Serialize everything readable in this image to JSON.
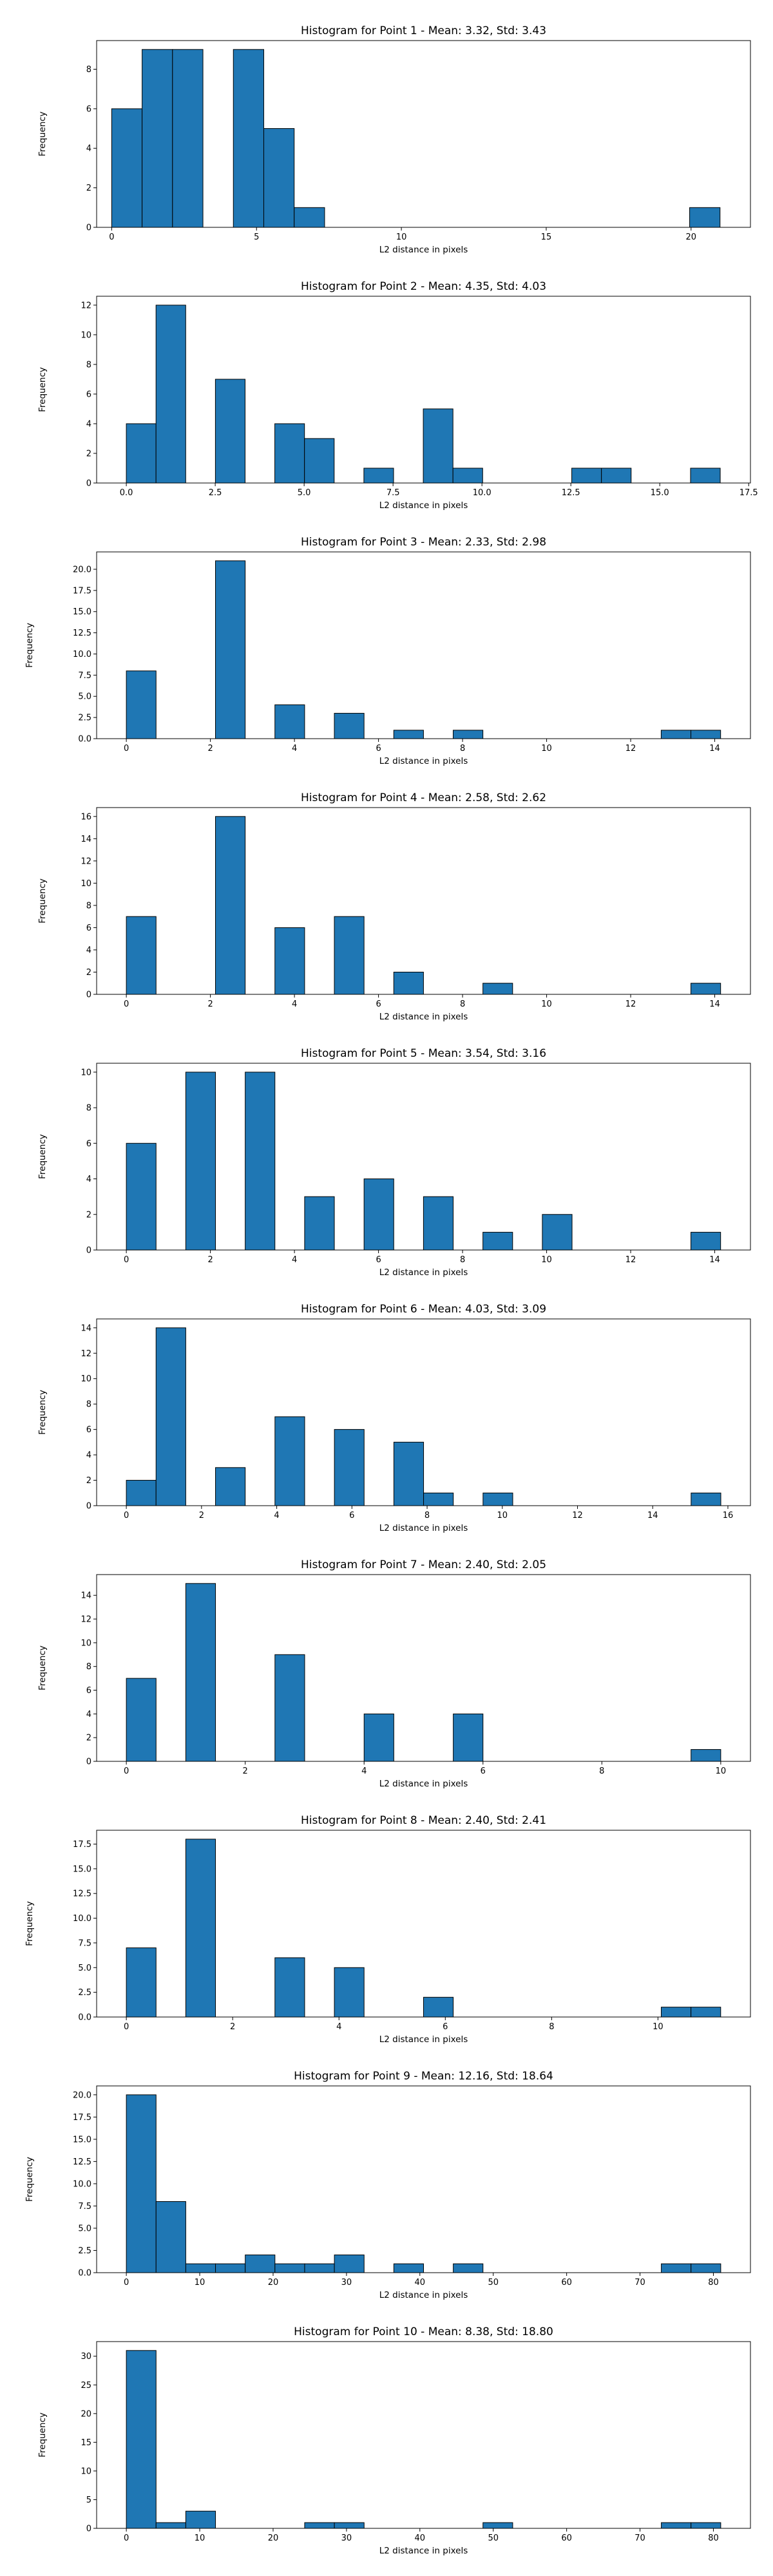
{
  "chart_data": [
    {
      "type": "bar",
      "title": "Histogram for Point 1 - Mean: 3.32, Std: 3.43",
      "xlabel": "L2 distance in pixels",
      "ylabel": "Frequency",
      "bins": {
        "start": 0.0,
        "width": 1.05
      },
      "values": [
        6,
        9,
        9,
        0,
        9,
        5,
        1,
        0,
        0,
        0,
        0,
        0,
        0,
        0,
        0,
        0,
        0,
        0,
        0,
        1
      ],
      "xlim": [
        -0.52,
        22.05
      ],
      "ylim": [
        0,
        9.45
      ],
      "xticks": [
        {
          "v": 0,
          "label": "0"
        },
        {
          "v": 5,
          "label": "5"
        },
        {
          "v": 10,
          "label": "10"
        },
        {
          "v": 15,
          "label": "15"
        },
        {
          "v": 20,
          "label": "20"
        }
      ],
      "yticks": [
        {
          "v": 0,
          "label": "0"
        },
        {
          "v": 2,
          "label": "2"
        },
        {
          "v": 4,
          "label": "4"
        },
        {
          "v": 6,
          "label": "6"
        },
        {
          "v": 8,
          "label": "8"
        }
      ]
    },
    {
      "type": "bar",
      "title": "Histogram for Point 2 - Mean: 4.35, Std: 4.03",
      "xlabel": "L2 distance in pixels",
      "ylabel": "Frequency",
      "bins": {
        "start": 0.0,
        "width": 0.835
      },
      "values": [
        4,
        12,
        0,
        7,
        0,
        4,
        3,
        0,
        1,
        0,
        5,
        1,
        0,
        0,
        0,
        1,
        1,
        0,
        0,
        1
      ],
      "xlim": [
        -0.835,
        17.55
      ],
      "ylim": [
        0,
        12.6
      ],
      "xticks": [
        {
          "v": 0,
          "label": "0.0"
        },
        {
          "v": 2.5,
          "label": "2.5"
        },
        {
          "v": 5,
          "label": "5.0"
        },
        {
          "v": 7.5,
          "label": "7.5"
        },
        {
          "v": 10,
          "label": "10.0"
        },
        {
          "v": 12.5,
          "label": "12.5"
        },
        {
          "v": 15,
          "label": "15.0"
        },
        {
          "v": 17.5,
          "label": "17.5"
        }
      ],
      "yticks": [
        {
          "v": 0,
          "label": "0"
        },
        {
          "v": 2,
          "label": "2"
        },
        {
          "v": 4,
          "label": "4"
        },
        {
          "v": 6,
          "label": "6"
        },
        {
          "v": 8,
          "label": "8"
        },
        {
          "v": 10,
          "label": "10"
        },
        {
          "v": 12,
          "label": "12"
        }
      ]
    },
    {
      "type": "bar",
      "title": "Histogram for Point 3 - Mean: 2.33, Std: 2.98",
      "xlabel": "L2 distance in pixels",
      "ylabel": "Frequency",
      "bins": {
        "start": 0.0,
        "width": 0.707
      },
      "values": [
        8,
        0,
        0,
        21,
        0,
        4,
        0,
        3,
        0,
        1,
        0,
        1,
        0,
        0,
        0,
        0,
        0,
        0,
        1,
        1
      ],
      "xlim": [
        -0.707,
        14.85
      ],
      "ylim": [
        0,
        22.05
      ],
      "xticks": [
        {
          "v": 0,
          "label": "0"
        },
        {
          "v": 2,
          "label": "2"
        },
        {
          "v": 4,
          "label": "4"
        },
        {
          "v": 6,
          "label": "6"
        },
        {
          "v": 8,
          "label": "8"
        },
        {
          "v": 10,
          "label": "10"
        },
        {
          "v": 12,
          "label": "12"
        },
        {
          "v": 14,
          "label": "14"
        }
      ],
      "yticks": [
        {
          "v": 0,
          "label": "0.0"
        },
        {
          "v": 2.5,
          "label": "2.5"
        },
        {
          "v": 5,
          "label": "5.0"
        },
        {
          "v": 7.5,
          "label": "7.5"
        },
        {
          "v": 10,
          "label": "10.0"
        },
        {
          "v": 12.5,
          "label": "12.5"
        },
        {
          "v": 15,
          "label": "15.0"
        },
        {
          "v": 17.5,
          "label": "17.5"
        },
        {
          "v": 20,
          "label": "20.0"
        }
      ]
    },
    {
      "type": "bar",
      "title": "Histogram for Point 4 - Mean: 2.58, Std: 2.62",
      "xlabel": "L2 distance in pixels",
      "ylabel": "Frequency",
      "bins": {
        "start": 0.0,
        "width": 0.707
      },
      "values": [
        7,
        0,
        0,
        16,
        0,
        6,
        0,
        7,
        0,
        2,
        0,
        0,
        1,
        0,
        0,
        0,
        0,
        0,
        0,
        1
      ],
      "xlim": [
        -0.707,
        14.85
      ],
      "ylim": [
        0,
        16.8
      ],
      "xticks": [
        {
          "v": 0,
          "label": "0"
        },
        {
          "v": 2,
          "label": "2"
        },
        {
          "v": 4,
          "label": "4"
        },
        {
          "v": 6,
          "label": "6"
        },
        {
          "v": 8,
          "label": "8"
        },
        {
          "v": 10,
          "label": "10"
        },
        {
          "v": 12,
          "label": "12"
        },
        {
          "v": 14,
          "label": "14"
        }
      ],
      "yticks": [
        {
          "v": 0,
          "label": "0"
        },
        {
          "v": 2,
          "label": "2"
        },
        {
          "v": 4,
          "label": "4"
        },
        {
          "v": 6,
          "label": "6"
        },
        {
          "v": 8,
          "label": "8"
        },
        {
          "v": 10,
          "label": "10"
        },
        {
          "v": 12,
          "label": "12"
        },
        {
          "v": 14,
          "label": "14"
        },
        {
          "v": 16,
          "label": "16"
        }
      ]
    },
    {
      "type": "bar",
      "title": "Histogram for Point 5 - Mean: 3.54, Std: 3.16",
      "xlabel": "L2 distance in pixels",
      "ylabel": "Frequency",
      "bins": {
        "start": 0.0,
        "width": 0.707
      },
      "values": [
        6,
        0,
        10,
        0,
        10,
        0,
        3,
        0,
        4,
        0,
        3,
        0,
        1,
        0,
        2,
        0,
        0,
        0,
        0,
        1
      ],
      "xlim": [
        -0.707,
        14.85
      ],
      "ylim": [
        0,
        10.5
      ],
      "xticks": [
        {
          "v": 0,
          "label": "0"
        },
        {
          "v": 2,
          "label": "2"
        },
        {
          "v": 4,
          "label": "4"
        },
        {
          "v": 6,
          "label": "6"
        },
        {
          "v": 8,
          "label": "8"
        },
        {
          "v": 10,
          "label": "10"
        },
        {
          "v": 12,
          "label": "12"
        },
        {
          "v": 14,
          "label": "14"
        }
      ],
      "yticks": [
        {
          "v": 0,
          "label": "0"
        },
        {
          "v": 2,
          "label": "2"
        },
        {
          "v": 4,
          "label": "4"
        },
        {
          "v": 6,
          "label": "6"
        },
        {
          "v": 8,
          "label": "8"
        },
        {
          "v": 10,
          "label": "10"
        }
      ]
    },
    {
      "type": "bar",
      "title": "Histogram for Point 6 - Mean: 4.03, Std: 3.09",
      "xlabel": "L2 distance in pixels",
      "ylabel": "Frequency",
      "bins": {
        "start": 0.0,
        "width": 0.7906
      },
      "values": [
        2,
        14,
        0,
        3,
        0,
        7,
        0,
        6,
        0,
        5,
        1,
        0,
        1,
        0,
        0,
        0,
        0,
        0,
        0,
        1
      ],
      "xlim": [
        -0.79,
        16.6
      ],
      "ylim": [
        0,
        14.7
      ],
      "xticks": [
        {
          "v": 0,
          "label": "0"
        },
        {
          "v": 2,
          "label": "2"
        },
        {
          "v": 4,
          "label": "4"
        },
        {
          "v": 6,
          "label": "6"
        },
        {
          "v": 8,
          "label": "8"
        },
        {
          "v": 10,
          "label": "10"
        },
        {
          "v": 12,
          "label": "12"
        },
        {
          "v": 14,
          "label": "14"
        },
        {
          "v": 16,
          "label": "16"
        }
      ],
      "yticks": [
        {
          "v": 0,
          "label": "0"
        },
        {
          "v": 2,
          "label": "2"
        },
        {
          "v": 4,
          "label": "4"
        },
        {
          "v": 6,
          "label": "6"
        },
        {
          "v": 8,
          "label": "8"
        },
        {
          "v": 10,
          "label": "10"
        },
        {
          "v": 12,
          "label": "12"
        },
        {
          "v": 14,
          "label": "14"
        }
      ]
    },
    {
      "type": "bar",
      "title": "Histogram for Point 7 - Mean: 2.40, Std: 2.05",
      "xlabel": "L2 distance in pixels",
      "ylabel": "Frequency",
      "bins": {
        "start": 0.0,
        "width": 0.5
      },
      "values": [
        7,
        0,
        15,
        0,
        0,
        9,
        0,
        0,
        4,
        0,
        0,
        4,
        0,
        0,
        0,
        0,
        0,
        0,
        0,
        1
      ],
      "xlim": [
        -0.5,
        10.5
      ],
      "ylim": [
        0,
        15.75
      ],
      "xticks": [
        {
          "v": 0,
          "label": "0"
        },
        {
          "v": 2,
          "label": "2"
        },
        {
          "v": 4,
          "label": "4"
        },
        {
          "v": 6,
          "label": "6"
        },
        {
          "v": 8,
          "label": "8"
        },
        {
          "v": 10,
          "label": "10"
        }
      ],
      "yticks": [
        {
          "v": 0,
          "label": "0"
        },
        {
          "v": 2,
          "label": "2"
        },
        {
          "v": 4,
          "label": "4"
        },
        {
          "v": 6,
          "label": "6"
        },
        {
          "v": 8,
          "label": "8"
        },
        {
          "v": 10,
          "label": "10"
        },
        {
          "v": 12,
          "label": "12"
        },
        {
          "v": 14,
          "label": "14"
        }
      ]
    },
    {
      "type": "bar",
      "title": "Histogram for Point 8 - Mean: 2.40, Std: 2.41",
      "xlabel": "L2 distance in pixels",
      "ylabel": "Frequency",
      "bins": {
        "start": 0.0,
        "width": 0.559
      },
      "values": [
        7,
        0,
        18,
        0,
        0,
        6,
        0,
        5,
        0,
        0,
        2,
        0,
        0,
        0,
        0,
        0,
        0,
        0,
        1,
        1
      ],
      "xlim": [
        -0.559,
        11.74
      ],
      "ylim": [
        0,
        18.9
      ],
      "xticks": [
        {
          "v": 0,
          "label": "0"
        },
        {
          "v": 2,
          "label": "2"
        },
        {
          "v": 4,
          "label": "4"
        },
        {
          "v": 6,
          "label": "6"
        },
        {
          "v": 8,
          "label": "8"
        },
        {
          "v": 10,
          "label": "10"
        }
      ],
      "yticks": [
        {
          "v": 0,
          "label": "0.0"
        },
        {
          "v": 2.5,
          "label": "2.5"
        },
        {
          "v": 5,
          "label": "5.0"
        },
        {
          "v": 7.5,
          "label": "7.5"
        },
        {
          "v": 10,
          "label": "10.0"
        },
        {
          "v": 12.5,
          "label": "12.5"
        },
        {
          "v": 15,
          "label": "15.0"
        },
        {
          "v": 17.5,
          "label": "17.5"
        }
      ]
    },
    {
      "type": "bar",
      "title": "Histogram for Point 9 - Mean: 12.16, Std: 18.64",
      "xlabel": "L2 distance in pixels",
      "ylabel": "Frequency",
      "bins": {
        "start": 0.0,
        "width": 4.05
      },
      "values": [
        20,
        8,
        1,
        1,
        2,
        1,
        1,
        2,
        0,
        1,
        0,
        1,
        0,
        0,
        0,
        0,
        0,
        0,
        1,
        1
      ],
      "xlim": [
        -4.05,
        85.05
      ],
      "ylim": [
        0,
        21
      ],
      "xticks": [
        {
          "v": 0,
          "label": "0"
        },
        {
          "v": 10,
          "label": "10"
        },
        {
          "v": 20,
          "label": "20"
        },
        {
          "v": 30,
          "label": "30"
        },
        {
          "v": 40,
          "label": "40"
        },
        {
          "v": 50,
          "label": "50"
        },
        {
          "v": 60,
          "label": "60"
        },
        {
          "v": 70,
          "label": "70"
        },
        {
          "v": 80,
          "label": "80"
        }
      ],
      "yticks": [
        {
          "v": 0,
          "label": "0.0"
        },
        {
          "v": 2.5,
          "label": "2.5"
        },
        {
          "v": 5,
          "label": "5.0"
        },
        {
          "v": 7.5,
          "label": "7.5"
        },
        {
          "v": 10,
          "label": "10.0"
        },
        {
          "v": 12.5,
          "label": "12.5"
        },
        {
          "v": 15,
          "label": "15.0"
        },
        {
          "v": 17.5,
          "label": "17.5"
        },
        {
          "v": 20,
          "label": "20.0"
        }
      ]
    },
    {
      "type": "bar",
      "title": "Histogram for Point 10 - Mean: 8.38, Std: 18.80",
      "xlabel": "L2 distance in pixels",
      "ylabel": "Frequency",
      "bins": {
        "start": 0.0,
        "width": 4.05
      },
      "values": [
        31,
        1,
        3,
        0,
        0,
        0,
        1,
        1,
        0,
        0,
        0,
        0,
        1,
        0,
        0,
        0,
        0,
        0,
        1,
        1
      ],
      "xlim": [
        -4.05,
        85.05
      ],
      "ylim": [
        0,
        32.55
      ],
      "xticks": [
        {
          "v": 0,
          "label": "0"
        },
        {
          "v": 10,
          "label": "10"
        },
        {
          "v": 20,
          "label": "20"
        },
        {
          "v": 30,
          "label": "30"
        },
        {
          "v": 40,
          "label": "40"
        },
        {
          "v": 50,
          "label": "50"
        },
        {
          "v": 60,
          "label": "60"
        },
        {
          "v": 70,
          "label": "70"
        },
        {
          "v": 80,
          "label": "80"
        }
      ],
      "yticks": [
        {
          "v": 0,
          "label": "0"
        },
        {
          "v": 5,
          "label": "5"
        },
        {
          "v": 10,
          "label": "10"
        },
        {
          "v": 15,
          "label": "15"
        },
        {
          "v": 20,
          "label": "20"
        },
        {
          "v": 25,
          "label": "25"
        },
        {
          "v": 30,
          "label": "30"
        }
      ]
    }
  ]
}
